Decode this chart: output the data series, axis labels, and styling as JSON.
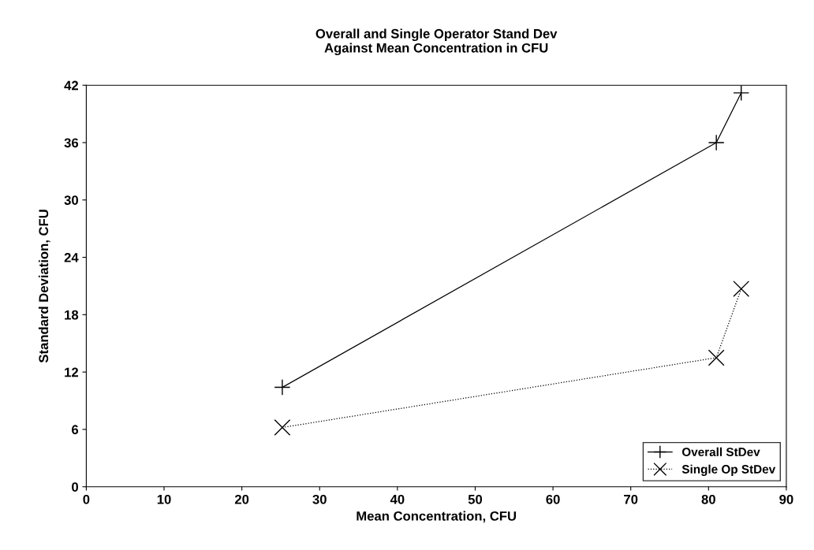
{
  "chart_data": {
    "type": "line",
    "title": "Overall and Single Operator Stand Dev\nAgainst Mean Concentration in CFU",
    "xlabel": "Mean Concentration, CFU",
    "ylabel": "Standard Deviation, CFU",
    "series": [
      {
        "name": "Overall StDev",
        "color": "#000000",
        "x": [
          25.2,
          81.0,
          84.2
        ],
        "values": [
          10.4,
          36.0,
          41.2
        ],
        "marker": "plus",
        "line_style": "solid"
      },
      {
        "name": "Single Op StDev",
        "color": "#000000",
        "x": [
          25.2,
          81.0,
          84.2
        ],
        "values": [
          6.2,
          13.5,
          20.7
        ],
        "marker": "cross",
        "line_style": "dotted"
      }
    ],
    "xlim": [
      0,
      90
    ],
    "xticks": [
      0,
      10,
      20,
      30,
      40,
      50,
      60,
      70,
      80,
      90
    ],
    "ylim": [
      0,
      42
    ],
    "yticks": [
      0,
      6,
      12,
      18,
      24,
      30,
      36,
      42
    ],
    "grid": false,
    "legend": "bottom right"
  }
}
